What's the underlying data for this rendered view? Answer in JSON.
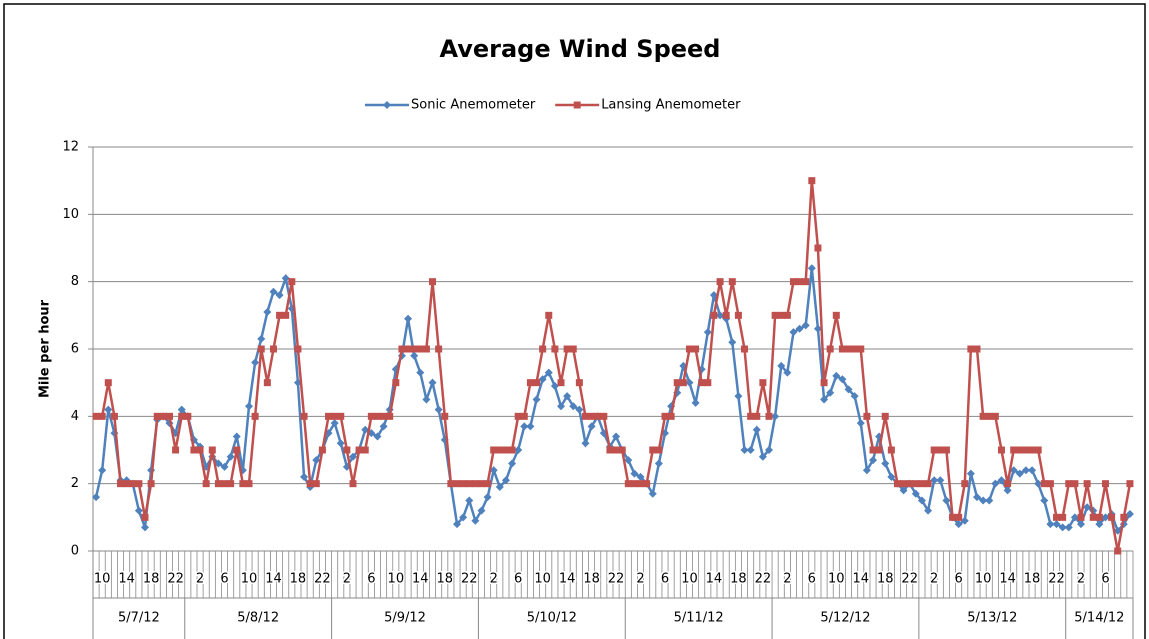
{
  "chart_data": {
    "type": "line",
    "title": "Average Wind Speed",
    "y_label": "Mile per hour",
    "categories": [
      null,
      "10",
      null,
      null,
      null,
      "14",
      null,
      null,
      null,
      "18",
      null,
      null,
      null,
      "22",
      null,
      null,
      null,
      "2",
      null,
      null,
      null,
      "6",
      null,
      null,
      null,
      "10",
      null,
      null,
      null,
      "14",
      null,
      null,
      null,
      "18",
      null,
      null,
      null,
      "22",
      null,
      null,
      null,
      "2",
      null,
      null,
      null,
      "6",
      null,
      null,
      null,
      "10",
      null,
      null,
      null,
      "14",
      null,
      null,
      null,
      "18",
      null,
      null,
      null,
      "22",
      null,
      null,
      null,
      "2",
      null,
      null,
      null,
      "6",
      null,
      null,
      null,
      "10",
      null,
      null,
      null,
      "14",
      null,
      null,
      null,
      "18",
      null,
      null,
      null,
      "22",
      null,
      null,
      null,
      "2",
      null,
      null,
      null,
      "6",
      null,
      null,
      null,
      "10",
      null,
      null,
      null,
      "14",
      null,
      null,
      null,
      "18",
      null,
      null,
      null,
      "22",
      null,
      null,
      null,
      "2",
      null,
      null,
      null,
      "6",
      null,
      null,
      null,
      "10",
      null,
      null,
      null,
      "14",
      null,
      null,
      null,
      "18",
      null,
      null,
      null,
      "22",
      null,
      null,
      null,
      "2",
      null,
      null,
      null,
      "6",
      null,
      null,
      null,
      "10",
      null,
      null,
      null,
      "14",
      null,
      null,
      null,
      "18",
      null,
      null,
      null,
      "22",
      null,
      null,
      null,
      "2",
      null,
      null,
      null,
      "6",
      null,
      null,
      null,
      null
    ],
    "category_groups": [
      {
        "label": "5/7/12",
        "span": 15
      },
      {
        "label": "5/8/12",
        "span": 24
      },
      {
        "label": "5/9/12",
        "span": 24
      },
      {
        "label": "5/10/12",
        "span": 24
      },
      {
        "label": "5/11/12",
        "span": 24
      },
      {
        "label": "5/12/12",
        "span": 24
      },
      {
        "label": "5/13/12",
        "span": 24
      },
      {
        "label": "5/14/12",
        "span": 11
      }
    ],
    "series": [
      {
        "name": "Sonic Anemometer",
        "color": "#4f81bd",
        "marker": "diamond",
        "values": [
          1.6,
          2.4,
          4.2,
          3.5,
          2.1,
          2.1,
          2.0,
          1.2,
          0.7,
          2.4,
          3.9,
          4.0,
          3.8,
          3.5,
          4.2,
          4.0,
          3.3,
          3.1,
          2.5,
          2.8,
          2.6,
          2.5,
          2.8,
          3.4,
          2.4,
          4.3,
          5.6,
          6.3,
          7.1,
          7.7,
          7.6,
          8.1,
          7.2,
          5.0,
          2.2,
          1.9,
          2.7,
          3.0,
          3.5,
          3.8,
          3.2,
          2.5,
          2.8,
          3.0,
          3.6,
          3.5,
          3.4,
          3.7,
          4.2,
          5.4,
          5.8,
          6.9,
          5.8,
          5.3,
          4.5,
          5.0,
          4.2,
          3.3,
          2.0,
          0.8,
          1.0,
          1.5,
          0.9,
          1.2,
          1.6,
          2.4,
          1.9,
          2.1,
          2.6,
          3.0,
          3.7,
          3.7,
          4.5,
          5.1,
          5.3,
          4.9,
          4.3,
          4.6,
          4.3,
          4.2,
          3.2,
          3.7,
          4.0,
          3.5,
          3.1,
          3.4,
          3.0,
          2.7,
          2.3,
          2.2,
          2.0,
          1.7,
          2.6,
          3.5,
          4.3,
          4.7,
          5.5,
          5.0,
          4.4,
          5.4,
          6.5,
          7.6,
          7.0,
          6.9,
          6.2,
          4.6,
          3.0,
          3.0,
          3.6,
          2.8,
          3.0,
          4.0,
          5.5,
          5.3,
          6.5,
          6.6,
          6.7,
          8.4,
          6.6,
          4.5,
          4.7,
          5.2,
          5.1,
          4.8,
          4.6,
          3.8,
          2.4,
          2.7,
          3.4,
          2.6,
          2.2,
          2.0,
          1.8,
          2.0,
          1.7,
          1.5,
          1.2,
          2.1,
          2.1,
          1.5,
          1.0,
          0.8,
          0.9,
          2.3,
          1.6,
          1.5,
          1.5,
          2.0,
          2.1,
          1.8,
          2.4,
          2.3,
          2.4,
          2.4,
          2.0,
          1.5,
          0.8,
          0.8,
          0.7,
          0.7,
          1.0,
          0.8,
          1.3,
          1.2,
          0.8,
          1.0,
          1.1,
          0.6,
          0.8,
          1.1
        ]
      },
      {
        "name": "Lansing Anemometer",
        "color": "#c0504d",
        "marker": "square",
        "values": [
          4,
          4,
          5,
          4,
          2,
          2,
          2,
          2,
          1,
          2,
          4,
          4,
          4,
          3,
          4,
          4,
          3,
          3,
          2,
          3,
          2,
          2,
          2,
          3,
          2,
          2,
          4,
          6,
          5,
          6,
          7,
          7,
          8,
          6,
          4,
          2,
          2,
          3,
          4,
          4,
          4,
          3,
          2,
          3,
          3,
          4,
          4,
          4,
          4,
          5,
          6,
          6,
          6,
          6,
          6,
          8,
          6,
          4,
          2,
          2,
          2,
          2,
          2,
          2,
          2,
          3,
          3,
          3,
          3,
          4,
          4,
          5,
          5,
          6,
          7,
          6,
          5,
          6,
          6,
          5,
          4,
          4,
          4,
          4,
          3,
          3,
          3,
          2,
          2,
          2,
          2,
          3,
          3,
          4,
          4,
          5,
          5,
          6,
          6,
          5,
          5,
          7,
          8,
          7,
          8,
          7,
          6,
          4,
          4,
          5,
          4,
          7,
          7,
          7,
          8,
          8,
          8,
          11,
          9,
          5,
          6,
          7,
          6,
          6,
          6,
          6,
          4,
          3,
          3,
          4,
          3,
          2,
          2,
          2,
          2,
          2,
          2,
          3,
          3,
          3,
          1,
          1,
          2,
          6,
          6,
          4,
          4,
          4,
          3,
          2,
          3,
          3,
          3,
          3,
          3,
          2,
          2,
          1,
          1,
          2,
          2,
          1,
          2,
          1,
          1,
          2,
          1,
          0,
          1,
          2
        ]
      }
    ],
    "ylim": [
      0,
      12
    ],
    "yticks": [
      0,
      2,
      4,
      6,
      8,
      10,
      12
    ],
    "grid": true,
    "legend": "top"
  }
}
